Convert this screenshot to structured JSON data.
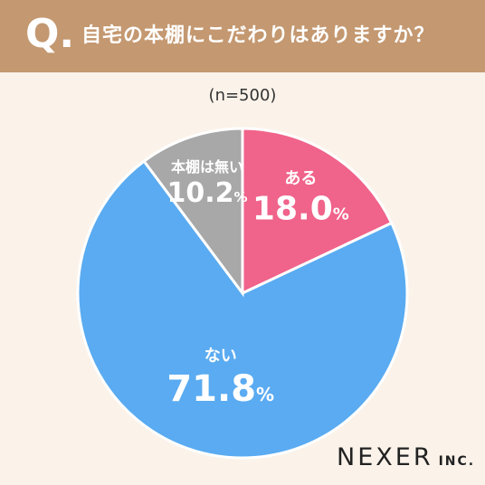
{
  "header": {
    "q_mark": "Q.",
    "question": "自宅の本棚にこだわりはありますか？"
  },
  "sample_size": "(n=500)",
  "chart_data": {
    "type": "pie",
    "title": "自宅の本棚にこだわりはありますか？",
    "slices": [
      {
        "label": "ある",
        "value": 18.0,
        "display": "18.0",
        "color": "#f0638a"
      },
      {
        "label": "ない",
        "value": 71.8,
        "display": "71.8",
        "color": "#5aabf1"
      },
      {
        "label": "本棚は無い",
        "value": 10.2,
        "display": "10.2",
        "color": "#a8a8a8"
      }
    ],
    "unit": "%",
    "start": "12 o'clock",
    "direction": "clockwise"
  },
  "logo": {
    "main": "NEXER",
    "sub": "INC."
  }
}
